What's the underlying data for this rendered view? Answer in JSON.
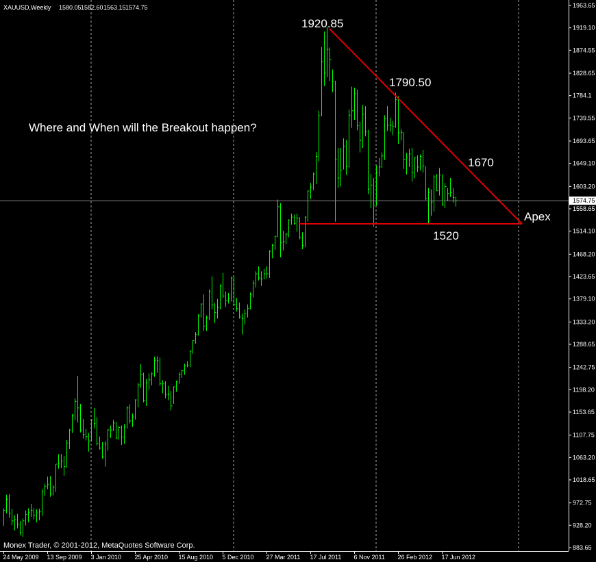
{
  "chart_data": {
    "type": "ohlc",
    "header": {
      "symbol": "XAUUSD,Weekly",
      "ohlc": [
        "1580.05",
        "1582.60",
        "1563.15",
        "1574.75"
      ]
    },
    "annotations": [
      "1920.85",
      "1790.50",
      "1670",
      "Apex",
      "1520",
      "Where and When will the Breakout happen?"
    ],
    "copyright": "Monex Trader, © 2001-2012, MetaQuotes Software Corp.",
    "color": "#00ff00",
    "ylim": [
      883.65,
      1963.65
    ],
    "yticks": [
      1963.65,
      {
        "value": 1919.1,
        "label": "1919.10"
      },
      1874.55,
      1828.65,
      1784.1,
      1739.55,
      1693.65,
      {
        "value": 1649.1,
        "label": "1649.10"
      },
      {
        "value": 1603.2,
        "label": "1603.20"
      },
      1558.65,
      {
        "value": 1514.1,
        "label": "1514.10"
      },
      {
        "value": 1468.2,
        "label": "1468.20"
      },
      1423.65,
      {
        "value": 1379.1,
        "label": "1379.10"
      },
      {
        "value": 1333.2,
        "label": "1333.20"
      },
      1288.65,
      1242.75,
      {
        "value": 1198.2,
        "label": "1198.20"
      },
      1153.65,
      1107.75,
      {
        "value": 1063.2,
        "label": "1063.20"
      },
      1018.65,
      972.75,
      {
        "value": 928.2,
        "label": "928.20"
      },
      883.65
    ],
    "categories": [
      "24 May 2009",
      null,
      null,
      null,
      null,
      null,
      null,
      null,
      null,
      null,
      null,
      null,
      null,
      null,
      null,
      null,
      "13 Sep 2009",
      null,
      null,
      null,
      null,
      null,
      null,
      null,
      null,
      null,
      null,
      null,
      null,
      null,
      null,
      null,
      "3 Jan 2010",
      null,
      null,
      null,
      null,
      null,
      null,
      null,
      null,
      null,
      null,
      null,
      null,
      null,
      null,
      null,
      "25 Apr 2010",
      null,
      null,
      null,
      null,
      null,
      null,
      null,
      null,
      null,
      null,
      null,
      null,
      null,
      null,
      null,
      "15 Aug 2010",
      null,
      null,
      null,
      null,
      null,
      null,
      null,
      null,
      null,
      null,
      null,
      null,
      null,
      null,
      null,
      "5 Dec 2010",
      null,
      null,
      null,
      null,
      null,
      null,
      null,
      null,
      null,
      null,
      null,
      null,
      null,
      null,
      null,
      "27 Mar 2011",
      null,
      null,
      null,
      null,
      null,
      null,
      null,
      null,
      null,
      null,
      null,
      null,
      null,
      null,
      null,
      "17 Jul 2011",
      null,
      null,
      null,
      null,
      null,
      null,
      null,
      null,
      null,
      null,
      null,
      null,
      null,
      null,
      null,
      "6 Nov 2011",
      null,
      null,
      null,
      null,
      null,
      null,
      null,
      null,
      null,
      null,
      null,
      null,
      null,
      null,
      null,
      "26 Feb 2012",
      null,
      null,
      null,
      null,
      null,
      null,
      null,
      null,
      null,
      null,
      null,
      null,
      null,
      null,
      null,
      "17 Jun 2012",
      null,
      null,
      null,
      null,
      null
    ],
    "high": [
      962,
      989,
      990,
      961,
      948,
      951,
      937,
      942,
      958,
      962,
      971,
      962,
      960,
      961,
      1000,
      1011,
      1025,
      1026,
      1008,
      1050,
      1070,
      1070,
      1066,
      1098,
      1120,
      1150,
      1181,
      1226,
      1170,
      1140,
      1120,
      1112,
      1140,
      1162,
      1143,
      1105,
      1094,
      1096,
      1120,
      1127,
      1138,
      1134,
      1126,
      1127,
      1130,
      1165,
      1169,
      1151,
      1179,
      1212,
      1249,
      1232,
      1220,
      1231,
      1233,
      1264,
      1265,
      1262,
      1217,
      1215,
      1206,
      1196,
      1205,
      1216,
      1233,
      1238,
      1250,
      1255,
      1276,
      1297,
      1313,
      1349,
      1370,
      1388,
      1346,
      1398,
      1424,
      1371,
      1379,
      1408,
      1431,
      1394,
      1391,
      1423,
      1423,
      1381,
      1372,
      1350,
      1358,
      1368,
      1392,
      1416,
      1434,
      1444,
      1434,
      1439,
      1444,
      1476,
      1489,
      1505,
      1577,
      1570,
      1515,
      1510,
      1538,
      1549,
      1547,
      1549,
      1542,
      1512,
      1544,
      1595,
      1610,
      1631,
      1672,
      1754,
      1881,
      1912,
      1921,
      1880,
      1836,
      1814,
      1680,
      1680,
      1699,
      1696,
      1756,
      1802,
      1800,
      1796,
      1732,
      1765,
      1763,
      1716,
      1628,
      1620,
      1645,
      1660,
      1671,
      1745,
      1763,
      1740,
      1733,
      1790,
      1783,
      1717,
      1711,
      1670,
      1678,
      1680,
      1662,
      1665,
      1667,
      1676,
      1643,
      1600,
      1597,
      1626,
      1628,
      1640,
      1627,
      1610,
      1600,
      1620,
      1600,
      1582.6
    ],
    "low": [
      927,
      952,
      943,
      928,
      918,
      922,
      908,
      905,
      928,
      934,
      945,
      940,
      934,
      938,
      947,
      987,
      1000,
      985,
      988,
      995,
      1041,
      1042,
      1027,
      1043,
      1080,
      1112,
      1138,
      1133,
      1113,
      1101,
      1097,
      1075,
      1095,
      1121,
      1087,
      1079,
      1061,
      1045,
      1077,
      1102,
      1116,
      1100,
      1099,
      1088,
      1090,
      1121,
      1131,
      1124,
      1139,
      1163,
      1202,
      1173,
      1166,
      1198,
      1207,
      1224,
      1232,
      1206,
      1191,
      1181,
      1177,
      1157,
      1170,
      1194,
      1210,
      1222,
      1228,
      1243,
      1243,
      1270,
      1290,
      1306,
      1342,
      1315,
      1315,
      1337,
      1358,
      1331,
      1340,
      1358,
      1381,
      1363,
      1370,
      1374,
      1366,
      1354,
      1340,
      1308,
      1328,
      1342,
      1358,
      1382,
      1402,
      1416,
      1405,
      1418,
      1420,
      1421,
      1460,
      1477,
      1502,
      1462,
      1476,
      1488,
      1502,
      1527,
      1527,
      1513,
      1498,
      1478,
      1482,
      1533,
      1578,
      1596,
      1608,
      1653,
      1743,
      1803,
      1821,
      1813,
      1791,
      1533,
      1600,
      1603,
      1637,
      1626,
      1640,
      1720,
      1736,
      1715,
      1671,
      1680,
      1703,
      1588,
      1560,
      1523,
      1565,
      1623,
      1640,
      1656,
      1714,
      1712,
      1705,
      1720,
      1688,
      1695,
      1638,
      1627,
      1642,
      1613,
      1620,
      1632,
      1635,
      1631,
      1576,
      1527,
      1545,
      1553,
      1594,
      1585,
      1565,
      1560,
      1575,
      1582,
      1571,
      1563.15
    ],
    "close": [
      958,
      980,
      952,
      937,
      940,
      930,
      914,
      937,
      950,
      954,
      958,
      948,
      953,
      955,
      996,
      1006,
      1010,
      992,
      1004,
      1050,
      1052,
      1056,
      1045,
      1092,
      1118,
      1146,
      1175,
      1162,
      1118,
      1109,
      1105,
      1096,
      1138,
      1131,
      1091,
      1082,
      1064,
      1090,
      1118,
      1118,
      1132,
      1102,
      1123,
      1104,
      1124,
      1162,
      1136,
      1144,
      1178,
      1208,
      1228,
      1176,
      1212,
      1218,
      1230,
      1257,
      1256,
      1210,
      1210,
      1189,
      1189,
      1166,
      1204,
      1214,
      1228,
      1236,
      1247,
      1246,
      1275,
      1296,
      1308,
      1345,
      1369,
      1325,
      1342,
      1394,
      1367,
      1352,
      1362,
      1405,
      1385,
      1376,
      1380,
      1421,
      1368,
      1360,
      1343,
      1340,
      1350,
      1360,
      1388,
      1410,
      1429,
      1421,
      1419,
      1429,
      1429,
      1474,
      1486,
      1504,
      1563,
      1491,
      1493,
      1508,
      1536,
      1542,
      1529,
      1540,
      1502,
      1486,
      1542,
      1594,
      1602,
      1628,
      1663,
      1744,
      1852,
      1829,
      1876,
      1856,
      1812,
      1657,
      1620,
      1636,
      1683,
      1643,
      1745,
      1754,
      1788,
      1724,
      1695,
      1747,
      1712,
      1598,
      1606,
      1566,
      1631,
      1642,
      1664,
      1738,
      1725,
      1725,
      1723,
      1776,
      1710,
      1711,
      1657,
      1661,
      1668,
      1631,
      1660,
      1642,
      1663,
      1644,
      1579,
      1591,
      1572,
      1622,
      1595,
      1626,
      1566,
      1603,
      1589,
      1591,
      1581,
      1574.75
    ]
  }
}
